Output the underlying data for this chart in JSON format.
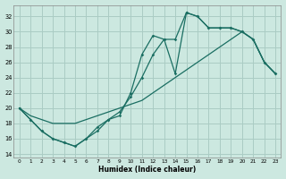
{
  "xlabel": "Humidex (Indice chaleur)",
  "bg_color": "#cce8e0",
  "grid_color": "#aaccC4",
  "line_color": "#1a6e62",
  "xlim": [
    -0.5,
    23.5
  ],
  "ylim": [
    13.5,
    33.5
  ],
  "xticks": [
    0,
    1,
    2,
    3,
    4,
    5,
    6,
    7,
    8,
    9,
    10,
    11,
    12,
    13,
    14,
    15,
    16,
    17,
    18,
    19,
    20,
    21,
    22,
    23
  ],
  "yticks": [
    14,
    16,
    18,
    20,
    22,
    24,
    26,
    28,
    30,
    32
  ],
  "line1_x": [
    0,
    1,
    2,
    3,
    4,
    5,
    6,
    7,
    8,
    9,
    10,
    11,
    12,
    13,
    14,
    15,
    16,
    17,
    18,
    19,
    20,
    21,
    22,
    23
  ],
  "line1_y": [
    20,
    18.5,
    17,
    16,
    15.5,
    15,
    16,
    17,
    18.5,
    19,
    22,
    27,
    29.5,
    29,
    24.5,
    32.5,
    32,
    30.5,
    30.5,
    30.5,
    30,
    29,
    26,
    24.5
  ],
  "line2_x": [
    0,
    1,
    2,
    3,
    4,
    5,
    6,
    7,
    8,
    9,
    10,
    11,
    12,
    13,
    14,
    15,
    16,
    17,
    18,
    19,
    20,
    21,
    22,
    23
  ],
  "line2_y": [
    20,
    18.5,
    17,
    16,
    15.5,
    15,
    16,
    17.5,
    18.5,
    19.5,
    21.5,
    24,
    27,
    29,
    29,
    32.5,
    32,
    30.5,
    30.5,
    30.5,
    30,
    29,
    26,
    24.5
  ],
  "line3_x": [
    0,
    1,
    2,
    3,
    4,
    5,
    6,
    7,
    8,
    9,
    10,
    11,
    12,
    13,
    14,
    15,
    16,
    17,
    18,
    19,
    20,
    21,
    22,
    23
  ],
  "line3_y": [
    20,
    19,
    18.5,
    18,
    18,
    18,
    18.5,
    19,
    19.5,
    20,
    20.5,
    21,
    22,
    23,
    24,
    25,
    26,
    27,
    28,
    29,
    30,
    29,
    26,
    24.5
  ]
}
